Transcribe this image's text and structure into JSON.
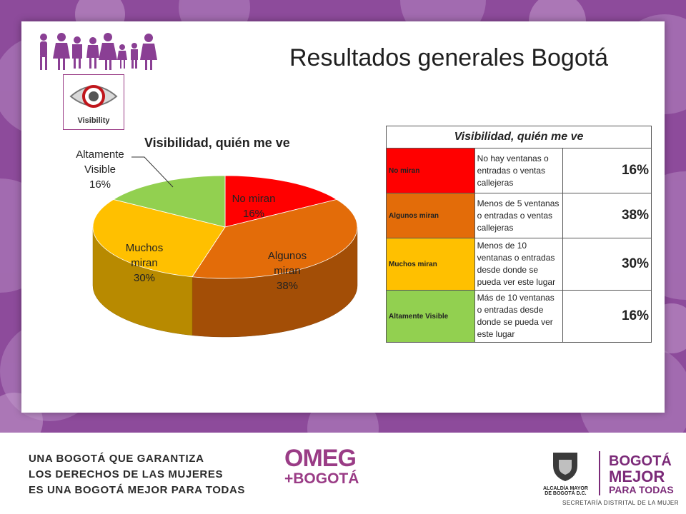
{
  "title": "Resultados generales Bogotá",
  "badge_label": "Visibility",
  "chart_data": {
    "type": "pie",
    "title": "Visibilidad, quién me ve",
    "slices": [
      {
        "label": "No miran",
        "value": 16,
        "color": "#ff0000"
      },
      {
        "label": "Algunos miran",
        "value": 38,
        "color": "#e36c09"
      },
      {
        "label": "Muchos miran",
        "value": 30,
        "color": "#ffc000"
      },
      {
        "label": "Altamente Visible",
        "value": 16,
        "color": "#92d050"
      }
    ]
  },
  "chart_labels": [
    {
      "lines": [
        "No miran",
        "16%"
      ]
    },
    {
      "lines": [
        "Algunos",
        "miran",
        "38%"
      ]
    },
    {
      "lines": [
        "Muchos",
        "miran",
        "30%"
      ]
    },
    {
      "lines": [
        "Altamente",
        "Visible",
        "16%"
      ]
    }
  ],
  "table": {
    "header": "Visibilidad, quién me ve",
    "rows": [
      {
        "category": "No miran",
        "description": "No hay ventanas o entradas o ventas callejeras",
        "percent": "16%",
        "color": "#ff0000"
      },
      {
        "category": "Algunos miran",
        "description": "Menos de 5 ventanas o entradas o ventas callejeras",
        "percent": "38%",
        "color": "#e36c09"
      },
      {
        "category": "Muchos miran",
        "description": "Menos de 10 ventanas o entradas desde donde se pueda ver este lugar",
        "percent": "30%",
        "color": "#ffc000"
      },
      {
        "category": "Altamente Visible",
        "description": "Más de 10 ventanas o entradas desde donde se pueda ver este lugar",
        "percent": "16%",
        "color": "#92d050"
      }
    ]
  },
  "footer": {
    "slogan": [
      "UNA BOGOTÁ QUE GARANTIZA",
      "LOS DERECHOS DE LAS MUJERES",
      "ES UNA BOGOTÁ MEJOR PARA TODAS"
    ],
    "omeg": [
      "OMEG",
      "+BOGOTÁ"
    ],
    "alcaldia": [
      "ALCALDÍA MAYOR",
      "DE BOGOTÁ D.C."
    ],
    "bogota_logo": [
      "BOGOTÁ",
      "MEJOR",
      "PARA TODAS"
    ],
    "secretaria": "SECRETARÍA DISTRITAL DE LA MUJER"
  },
  "colors": {
    "accent": "#8e4a9c",
    "brand": "#9a3c86"
  }
}
